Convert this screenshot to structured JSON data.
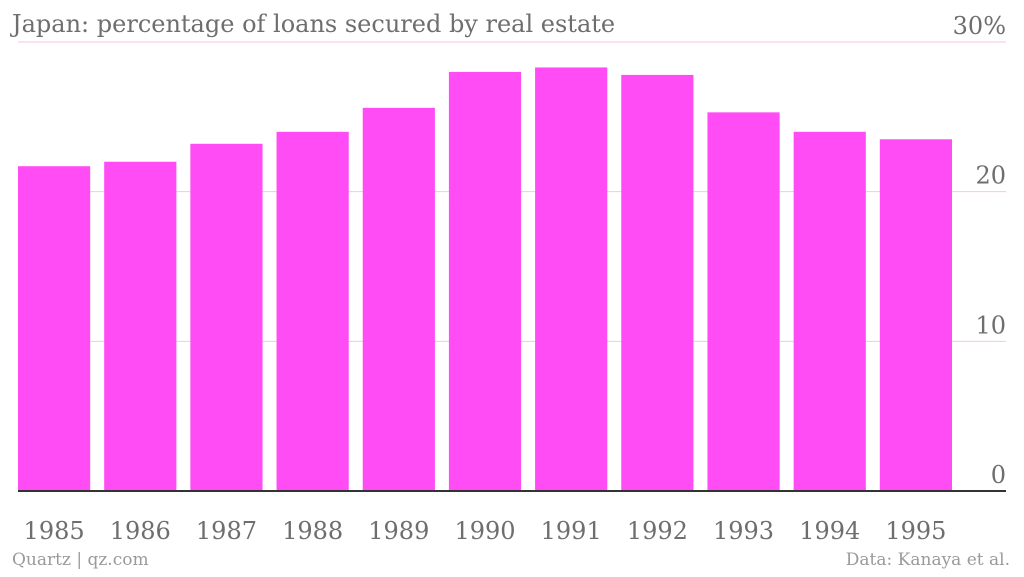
{
  "chart_data": {
    "type": "bar",
    "title": "Japan: percentage of loans secured by real estate",
    "categories": [
      "1985",
      "1986",
      "1987",
      "1988",
      "1989",
      "1990",
      "1991",
      "1992",
      "1993",
      "1994",
      "1995"
    ],
    "values": [
      21.7,
      22.0,
      23.2,
      24.0,
      25.6,
      28.0,
      28.3,
      27.8,
      25.3,
      24.0,
      23.5
    ],
    "ylim": [
      0,
      30
    ],
    "yticks": [
      0,
      10,
      20,
      30
    ],
    "ytick_labels": [
      "0",
      "10",
      "20",
      "30%"
    ],
    "y_axis_side": "right",
    "grid": true,
    "bar_color": "#ff4cf5",
    "gridline_color": "#f2c6ee"
  },
  "footer": {
    "source_left": "Quartz | qz.com",
    "source_right": "Data: Kanaya et al."
  }
}
